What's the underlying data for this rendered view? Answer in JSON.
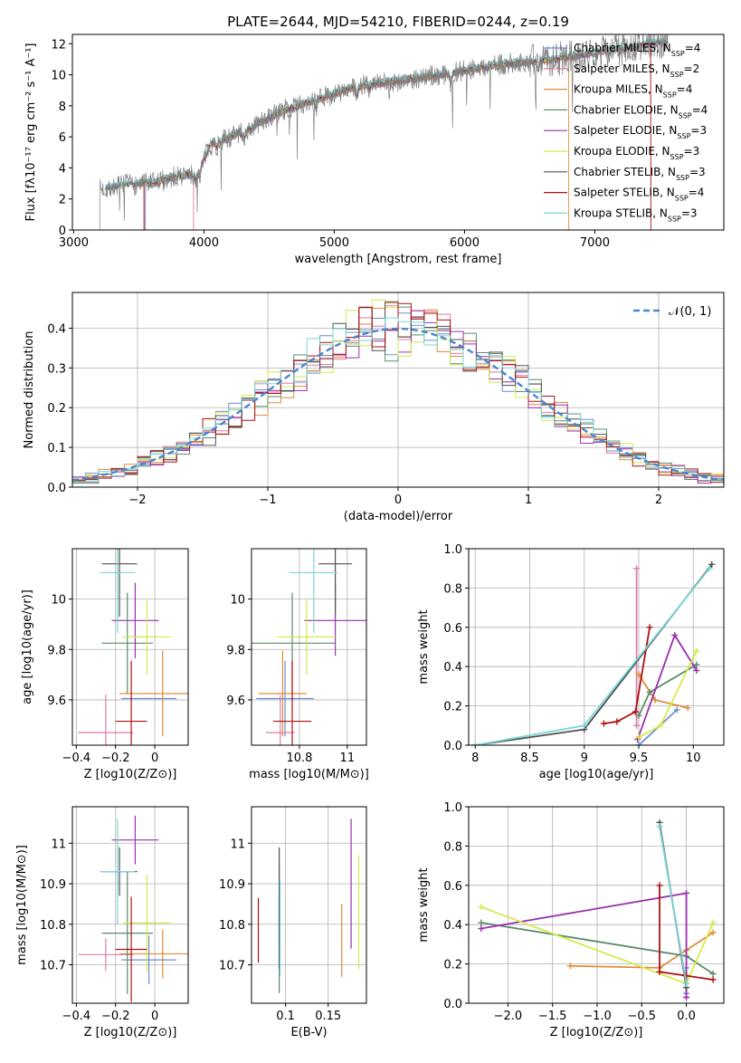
{
  "figure_title": "PLATE=2644, MJD=54210, FIBERID=0244, z=0.19",
  "colors": {
    "Chabrier MILES": "#6a8fd0",
    "Salpeter MILES": "#e07aa8",
    "Kroupa MILES": "#e08b3a",
    "Chabrier ELODIE": "#5a8a6a",
    "Salpeter ELODIE": "#9a2fae",
    "Kroupa ELODIE": "#d6e84c",
    "Chabrier STELIB": "#505050",
    "Salpeter STELIB": "#b01010",
    "Kroupa STELIB": "#7ad6d6",
    "data": "#808080"
  },
  "chart_data": [
    {
      "id": "spectrum",
      "type": "line",
      "title": "PLATE=2644, MJD=54210, FIBERID=0244, z=0.19",
      "xlabel": "wavelength [Angstrom, rest frame]",
      "ylabel": "Flux [fλ10⁻¹⁷ erg cm⁻² s⁻¹ A⁻¹]",
      "xlim": [
        2990,
        7990
      ],
      "ylim": [
        0,
        12.6
      ],
      "xticks": [
        3000,
        4000,
        5000,
        6000,
        7000
      ],
      "yticks": [
        0,
        2,
        4,
        6,
        8,
        10,
        12
      ],
      "grid": false,
      "legend_position": "lower-right",
      "legend": [
        "Chabrier MILES, N_SSP=4",
        "Salpeter MILES, N_SSP=2",
        "Kroupa MILES, N_SSP=4",
        "Chabrier ELODIE, N_SSP=4",
        "Salpeter ELODIE, N_SSP=3",
        "Kroupa ELODIE, N_SSP=3",
        "Chabrier STELIB, N_SSP=3",
        "Salpeter STELIB, N_SSP=4",
        "Kroupa STELIB, N_SSP=3"
      ],
      "continuum_x": [
        3200,
        3400,
        3600,
        3800,
        3950,
        4050,
        4300,
        4600,
        4900,
        5200,
        5500,
        5800,
        6100,
        6400,
        6700,
        7000,
        7300,
        7450
      ],
      "continuum_y": [
        2.6,
        2.9,
        3.0,
        3.5,
        3.6,
        5.5,
        6.3,
        7.7,
        8.5,
        9.3,
        9.6,
        10.0,
        10.4,
        10.8,
        11.0,
        11.4,
        11.8,
        12.1
      ],
      "model_start_x": {
        "Salpeter STELIB": 3540,
        "Kroupa MILES": 3540,
        "Salpeter MILES": 3920,
        "Chabrier MILES": 3550
      },
      "model_end_x": {
        "Kroupa MILES": 6800,
        "Salpeter STELIB": 7430
      }
    },
    {
      "id": "residuals",
      "type": "line",
      "xlabel": "(data-model)/error",
      "ylabel": "Normed distribution",
      "xlim": [
        -2.5,
        2.5
      ],
      "ylim": [
        0,
        0.49
      ],
      "xticks": [
        -2,
        -1,
        0,
        1,
        2
      ],
      "xtick_labels": [
        "−2",
        "−1",
        "0",
        "1",
        "2"
      ],
      "yticks": [
        0.0,
        0.1,
        0.2,
        0.3,
        0.4
      ],
      "grid": true,
      "legend_position": "top-right",
      "reference_label": "𝒩(0, 1)",
      "bin_width": 0.1,
      "hist_x_start": -2.5
    },
    {
      "id": "age-vs-Z",
      "type": "scatter",
      "xlabel": "Z [log10(Z/Z⊙)]",
      "ylabel": "age  [log10(age/yr)]",
      "xlim": [
        -0.42,
        0.17
      ],
      "ylim": [
        9.42,
        10.2
      ],
      "xticks": [
        -0.4,
        -0.2,
        0.0
      ],
      "yticks": [
        9.6,
        9.8,
        10.0
      ],
      "grid": true,
      "points": [
        {
          "name": "Chabrier MILES",
          "x": -0.03,
          "y": 9.605,
          "xerr": 0.14,
          "yerr": 0.0
        },
        {
          "name": "Salpeter MILES",
          "x": -0.25,
          "y": 9.47,
          "xerr": 0.14,
          "yerr": 0.15
        },
        {
          "name": "Kroupa MILES",
          "x": 0.04,
          "y": 9.625,
          "xerr": 0.22,
          "yerr": 0.17
        },
        {
          "name": "Chabrier ELODIE",
          "x": -0.14,
          "y": 9.825,
          "xerr": 0.13,
          "yerr": 0.2
        },
        {
          "name": "Salpeter ELODIE",
          "x": -0.1,
          "y": 9.915,
          "xerr": 0.12,
          "yerr": 0.15
        },
        {
          "name": "Kroupa ELODIE",
          "x": -0.04,
          "y": 9.85,
          "xerr": 0.12,
          "yerr": 0.15
        },
        {
          "name": "Chabrier STELIB",
          "x": -0.18,
          "y": 10.14,
          "xerr": 0.09,
          "yerr": 0.21
        },
        {
          "name": "Salpeter STELIB",
          "x": -0.12,
          "y": 9.515,
          "xerr": 0.08,
          "yerr": 0.24
        },
        {
          "name": "Kroupa STELIB",
          "x": -0.19,
          "y": 10.105,
          "xerr": 0.09,
          "yerr": 0.24
        }
      ]
    },
    {
      "id": "age-vs-mass",
      "type": "scatter",
      "xlabel": "mass [log10(M/M⊙)]",
      "ylabel": "",
      "xlim": [
        10.6,
        11.08
      ],
      "ylim": [
        9.42,
        10.2
      ],
      "xticks": [
        10.8,
        11.0
      ],
      "yticks": [
        9.6,
        9.8,
        10.0
      ],
      "grid": true,
      "points": [
        {
          "name": "Chabrier MILES",
          "x": 10.74,
          "y": 9.605,
          "xerr": 0.12,
          "yerr": 0.15
        },
        {
          "name": "Salpeter MILES",
          "x": 10.72,
          "y": 9.47,
          "xerr": 0.06,
          "yerr": 0.15
        },
        {
          "name": "Kroupa MILES",
          "x": 10.73,
          "y": 9.625,
          "xerr": 0.1,
          "yerr": 0.17
        },
        {
          "name": "Chabrier ELODIE",
          "x": 10.77,
          "y": 9.825,
          "xerr": 0.18,
          "yerr": 0.2
        },
        {
          "name": "Salpeter ELODIE",
          "x": 10.95,
          "y": 9.915,
          "xerr": 0.13,
          "yerr": 0.14
        },
        {
          "name": "Kroupa ELODIE",
          "x": 10.83,
          "y": 9.85,
          "xerr": 0.12,
          "yerr": 0.15
        },
        {
          "name": "Chabrier STELIB",
          "x": 10.95,
          "y": 10.14,
          "xerr": 0.07,
          "yerr": 0.2
        },
        {
          "name": "Salpeter STELIB",
          "x": 10.77,
          "y": 9.515,
          "xerr": 0.08,
          "yerr": 0.24
        },
        {
          "name": "Kroupa STELIB",
          "x": 10.86,
          "y": 10.105,
          "xerr": 0.1,
          "yerr": 0.24
        }
      ]
    },
    {
      "id": "weight-vs-age",
      "type": "line",
      "xlabel": "age  [log10(age/yr)]",
      "ylabel": "mass weight",
      "xlim": [
        7.94,
        10.28
      ],
      "ylim": [
        0,
        1.0
      ],
      "xticks": [
        8.0,
        8.5,
        9.0,
        9.5,
        10.0
      ],
      "yticks": [
        0.0,
        0.2,
        0.4,
        0.6,
        0.8,
        1.0
      ],
      "grid": true,
      "series": [
        {
          "key": "Chabrier MILES",
          "x": [
            9.5,
            9.85
          ],
          "y": [
            0.0,
            0.18
          ]
        },
        {
          "key": "Salpeter MILES",
          "x": [
            9.48,
            9.48
          ],
          "y": [
            0.1,
            0.9
          ]
        },
        {
          "key": "Kroupa MILES",
          "x": [
            9.5,
            9.65,
            9.95
          ],
          "y": [
            0.36,
            0.23,
            0.19
          ]
        },
        {
          "key": "Chabrier ELODIE",
          "x": [
            9.5,
            9.6,
            10.03
          ],
          "y": [
            0.15,
            0.27,
            0.41
          ]
        },
        {
          "key": "Salpeter ELODIE",
          "x": [
            9.49,
            9.83,
            10.03
          ],
          "y": [
            0.03,
            0.56,
            0.38
          ]
        },
        {
          "key": "Kroupa ELODIE",
          "x": [
            9.5,
            9.7,
            10.03
          ],
          "y": [
            0.04,
            0.1,
            0.48
          ]
        },
        {
          "key": "Chabrier STELIB",
          "x": [
            8.0,
            9.0,
            10.17
          ],
          "y": [
            0.0,
            0.08,
            0.92
          ]
        },
        {
          "key": "Salpeter STELIB",
          "x": [
            9.18,
            9.3,
            9.47,
            9.6
          ],
          "y": [
            0.11,
            0.12,
            0.17,
            0.6
          ]
        },
        {
          "key": "Kroupa STELIB",
          "x": [
            8.0,
            9.0,
            10.15
          ],
          "y": [
            0.0,
            0.1,
            0.9
          ]
        }
      ]
    },
    {
      "id": "mass-vs-Z",
      "type": "scatter",
      "xlabel": "Z [log10(Z/Z⊙)]",
      "ylabel": "mass [log10(M/M⊙)]",
      "xlim": [
        -0.42,
        0.17
      ],
      "ylim": [
        10.605,
        11.09
      ],
      "xticks": [
        -0.4,
        -0.2,
        0.0
      ],
      "yticks": [
        10.7,
        10.8,
        10.9,
        11.0
      ],
      "grid": true,
      "points": [
        {
          "name": "Chabrier MILES",
          "x": -0.03,
          "y": 10.712,
          "xerr": 0.14,
          "yerr": 0.06
        },
        {
          "name": "Salpeter MILES",
          "x": -0.25,
          "y": 10.725,
          "xerr": 0.14,
          "yerr": 0.04
        },
        {
          "name": "Kroupa MILES",
          "x": 0.04,
          "y": 10.727,
          "xerr": 0.22,
          "yerr": 0.06
        },
        {
          "name": "Chabrier ELODIE",
          "x": -0.14,
          "y": 10.778,
          "xerr": 0.13,
          "yerr": 0.15
        },
        {
          "name": "Salpeter ELODIE",
          "x": -0.1,
          "y": 11.008,
          "xerr": 0.12,
          "yerr": 0.06
        },
        {
          "name": "Kroupa ELODIE",
          "x": -0.04,
          "y": 10.803,
          "xerr": 0.12,
          "yerr": 0.12
        },
        {
          "name": "Chabrier STELIB",
          "x": -0.18,
          "y": 10.93,
          "xerr": 0.09,
          "yerr": 0.06
        },
        {
          "name": "Salpeter STELIB",
          "x": -0.12,
          "y": 10.738,
          "xerr": 0.08,
          "yerr": 0.13
        },
        {
          "name": "Kroupa STELIB",
          "x": -0.19,
          "y": 10.93,
          "xerr": 0.09,
          "yerr": 0.13
        }
      ]
    },
    {
      "id": "mass-vs-EBV",
      "type": "scatter",
      "xlabel": "E(B-V)",
      "ylabel": "",
      "xlim": [
        0.06,
        0.195
      ],
      "ylim": [
        10.605,
        11.09
      ],
      "xticks": [
        0.1,
        0.15
      ],
      "yticks": [
        10.7,
        10.8,
        10.9,
        11.0
      ],
      "grid": true,
      "points": [
        {
          "name": "Chabrier MILES",
          "x": 0.0925,
          "y": 10.76,
          "xerr": 0.0,
          "yerr": 0.07
        },
        {
          "name": "Salpeter MILES",
          "x": 0.0925,
          "y": 10.82,
          "xerr": 0.0,
          "yerr": 0.05
        },
        {
          "name": "Kroupa MILES",
          "x": 0.166,
          "y": 10.76,
          "xerr": 0.0,
          "yerr": 0.09
        },
        {
          "name": "Chabrier ELODIE",
          "x": 0.0925,
          "y": 10.79,
          "xerr": 0.0,
          "yerr": 0.16
        },
        {
          "name": "Salpeter ELODIE",
          "x": 0.177,
          "y": 10.9,
          "xerr": 0.0,
          "yerr": 0.16
        },
        {
          "name": "Kroupa ELODIE",
          "x": 0.186,
          "y": 10.83,
          "xerr": 0.0,
          "yerr": 0.14
        },
        {
          "name": "Chabrier STELIB",
          "x": 0.0925,
          "y": 10.84,
          "xerr": 0.0,
          "yerr": 0.15
        },
        {
          "name": "Salpeter STELIB",
          "x": 0.068,
          "y": 10.785,
          "xerr": 0.0,
          "yerr": 0.08
        },
        {
          "name": "Kroupa STELIB",
          "x": 0.0935,
          "y": 10.79,
          "xerr": 0.0,
          "yerr": 0.12
        }
      ]
    },
    {
      "id": "weight-vs-Z",
      "type": "line",
      "xlabel": "Z [log10(Z/Z⊙)]",
      "ylabel": "mass weight",
      "xlim": [
        -2.44,
        0.42
      ],
      "ylim": [
        0,
        1.0
      ],
      "xticks": [
        -2.0,
        -1.5,
        -1.0,
        -0.5,
        0.0
      ],
      "xtick_labels": [
        "−2.0",
        "−1.5",
        "−1.0",
        "−0.5",
        "0.0"
      ],
      "yticks": [
        0.0,
        0.2,
        0.4,
        0.6,
        0.8,
        1.0
      ],
      "grid": true,
      "series": [
        {
          "key": "Chabrier MILES",
          "x": [
            0.0,
            0.0
          ],
          "y": [
            0.05,
            0.18
          ]
        },
        {
          "key": "Salpeter MILES",
          "x": [
            -0.3,
            0.0
          ],
          "y": [
            0.9,
            0.1
          ]
        },
        {
          "key": "Kroupa MILES",
          "x": [
            -1.3,
            -0.3,
            0.0,
            0.3
          ],
          "y": [
            0.19,
            0.18,
            0.27,
            0.36
          ]
        },
        {
          "key": "Chabrier ELODIE",
          "x": [
            -2.3,
            0.0,
            0.3
          ],
          "y": [
            0.41,
            0.24,
            0.15
          ]
        },
        {
          "key": "Salpeter ELODIE",
          "x": [
            -2.3,
            0.0,
            0.0
          ],
          "y": [
            0.38,
            0.56,
            0.03
          ]
        },
        {
          "key": "Kroupa ELODIE",
          "x": [
            -2.3,
            0.0,
            0.3
          ],
          "y": [
            0.49,
            0.1,
            0.41
          ]
        },
        {
          "key": "Chabrier STELIB",
          "x": [
            -0.3,
            0.0
          ],
          "y": [
            0.92,
            0.08
          ]
        },
        {
          "key": "Salpeter STELIB",
          "x": [
            -0.3,
            -0.3,
            0.0,
            0.3
          ],
          "y": [
            0.6,
            0.16,
            0.14,
            0.12
          ]
        },
        {
          "key": "Kroupa STELIB",
          "x": [
            -0.3,
            0.0
          ],
          "y": [
            0.9,
            0.1
          ]
        }
      ]
    }
  ]
}
